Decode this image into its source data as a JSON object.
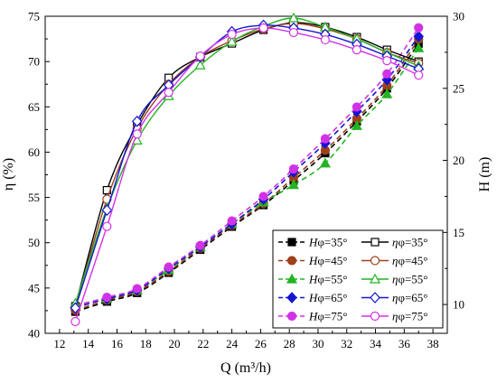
{
  "chart_data": {
    "type": "line",
    "xlabel": "Q (m³/h)",
    "ylabel_left": "η (%)",
    "ylabel_right": "H (m)",
    "xlim": [
      11,
      39
    ],
    "ylim_left": [
      40,
      75
    ],
    "ylim_right": [
      8,
      30
    ],
    "x_ticks": [
      12,
      14,
      16,
      18,
      20,
      22,
      24,
      26,
      28,
      30,
      32,
      34,
      36,
      38
    ],
    "y_left_ticks": [
      40,
      45,
      50,
      55,
      60,
      65,
      70,
      75
    ],
    "y_right_ticks": [
      10,
      15,
      20,
      25,
      30
    ],
    "grid": false,
    "legend_placement": "bottom-right",
    "head_series": [
      {
        "label_prefix": "H",
        "angle": "φ=35°",
        "color": "#000000",
        "marker": "square",
        "axis": "right",
        "x": [
          13.1,
          15.3,
          17.4,
          19.6,
          21.8,
          24.0,
          26.2,
          28.3,
          30.5,
          32.7,
          34.8,
          37.0
        ],
        "y": [
          9.5,
          10.2,
          10.8,
          12.2,
          13.8,
          15.4,
          16.9,
          18.6,
          20.5,
          22.7,
          25.0,
          28.1
        ]
      },
      {
        "label_prefix": "H",
        "angle": "φ=45°",
        "color": "#a0401c",
        "marker": "circle",
        "axis": "right",
        "x": [
          13.1,
          15.3,
          17.4,
          19.6,
          21.8,
          24.0,
          26.2,
          28.3,
          30.5,
          32.7,
          34.8,
          37.0
        ],
        "y": [
          9.6,
          10.3,
          10.9,
          12.3,
          13.9,
          15.5,
          17.0,
          18.8,
          20.7,
          22.9,
          25.2,
          28.4
        ]
      },
      {
        "label_prefix": "H",
        "angle": "φ=55°",
        "color": "#22b422",
        "marker": "triangle",
        "axis": "right",
        "x": [
          13.1,
          15.3,
          17.4,
          19.6,
          21.8,
          24.0,
          26.2,
          28.3,
          30.5,
          32.7,
          34.8,
          37.0
        ],
        "y": [
          10.0,
          10.4,
          11.0,
          12.4,
          14.0,
          15.6,
          17.1,
          18.3,
          19.8,
          22.4,
          24.6,
          27.8
        ]
      },
      {
        "label_prefix": "H",
        "angle": "φ=65°",
        "color": "#1414d2",
        "marker": "diamond",
        "axis": "right",
        "x": [
          13.1,
          15.3,
          17.4,
          19.6,
          21.8,
          24.0,
          26.2,
          28.3,
          30.5,
          32.7,
          34.8,
          37.0
        ],
        "y": [
          9.8,
          10.4,
          11.0,
          12.5,
          14.0,
          15.6,
          17.3,
          19.2,
          21.2,
          23.4,
          25.6,
          28.6
        ]
      },
      {
        "label_prefix": "H",
        "angle": "φ=75°",
        "color": "#d232e6",
        "marker": "circle",
        "axis": "right",
        "x": [
          13.1,
          15.3,
          17.4,
          19.6,
          21.8,
          24.0,
          26.2,
          28.3,
          30.5,
          32.7,
          34.8,
          37.0
        ],
        "y": [
          9.9,
          10.5,
          11.1,
          12.6,
          14.1,
          15.8,
          17.5,
          19.4,
          21.5,
          23.7,
          26.0,
          29.2
        ]
      }
    ],
    "eff_series": [
      {
        "label_prefix": "η",
        "angle": "φ=35°",
        "color": "#000000",
        "marker": "square",
        "axis": "left",
        "x": [
          13.1,
          15.3,
          17.4,
          19.6,
          21.8,
          24.0,
          26.2,
          28.3,
          30.5,
          32.7,
          34.8,
          37.0
        ],
        "y": [
          43.0,
          55.8,
          63.0,
          68.2,
          70.5,
          72.0,
          73.5,
          74.3,
          73.8,
          72.7,
          71.3,
          70.0
        ]
      },
      {
        "label_prefix": "η",
        "angle": "φ=45°",
        "color": "#a0401c",
        "marker": "circle",
        "axis": "left",
        "x": [
          13.1,
          15.3,
          17.4,
          19.6,
          21.8,
          24.0,
          26.2,
          28.3,
          30.5,
          32.7,
          34.8,
          37.0
        ],
        "y": [
          43.0,
          54.8,
          62.6,
          67.5,
          70.5,
          72.3,
          73.6,
          74.2,
          73.6,
          72.5,
          71.0,
          69.8
        ]
      },
      {
        "label_prefix": "η",
        "angle": "φ=55°",
        "color": "#22b422",
        "marker": "triangle",
        "axis": "left",
        "x": [
          13.1,
          15.3,
          17.4,
          19.6,
          21.8,
          24.0,
          26.2,
          28.3,
          30.5,
          32.7,
          34.8,
          37.0
        ],
        "y": [
          43.3,
          53.8,
          61.3,
          66.2,
          69.6,
          72.2,
          73.9,
          74.8,
          73.8,
          72.5,
          71.0,
          69.5
        ]
      },
      {
        "label_prefix": "η",
        "angle": "φ=65°",
        "color": "#1414d2",
        "marker": "diamond",
        "axis": "left",
        "x": [
          13.1,
          15.3,
          17.4,
          19.6,
          21.8,
          24.0,
          26.2,
          28.3,
          30.5,
          32.7,
          34.8,
          37.0
        ],
        "y": [
          42.8,
          53.6,
          63.4,
          67.4,
          70.5,
          73.3,
          74.0,
          73.7,
          73.0,
          71.9,
          70.6,
          69.2
        ]
      },
      {
        "label_prefix": "η",
        "angle": "φ=75°",
        "color": "#d232e6",
        "marker": "circle",
        "axis": "left",
        "x": [
          13.1,
          15.3,
          17.4,
          19.6,
          21.8,
          24.0,
          26.2,
          28.3,
          30.5,
          32.7,
          34.8,
          37.0
        ],
        "y": [
          41.3,
          51.8,
          62.0,
          66.6,
          70.6,
          73.0,
          73.7,
          73.2,
          72.4,
          71.3,
          70.1,
          68.5
        ]
      }
    ]
  }
}
